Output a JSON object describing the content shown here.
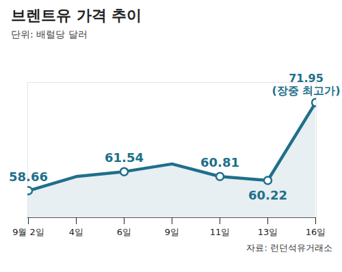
{
  "chart_data": {
    "type": "line",
    "title": "브렌트유 가격 추이",
    "subtitle": "단위: 배럴당 달러",
    "source": "자료: 런던석유거래소",
    "categories": [
      "9월 2일",
      "4일",
      "6일",
      "9일",
      "11일",
      "13일",
      "16일"
    ],
    "values": [
      58.66,
      60.8,
      61.54,
      62.7,
      60.81,
      60.22,
      71.95
    ],
    "value_labels": [
      "58.66",
      null,
      "61.54",
      null,
      "60.81",
      "60.22",
      "71.95"
    ],
    "annotations": [
      {
        "category": "16일",
        "text": "(장중 최고가)"
      }
    ],
    "ylim": [
      54.6,
      75
    ],
    "yticks": [],
    "color": "#1f6f8b",
    "data_labels": true,
    "tick_labels": "x",
    "marker": "circle",
    "grid": false
  }
}
